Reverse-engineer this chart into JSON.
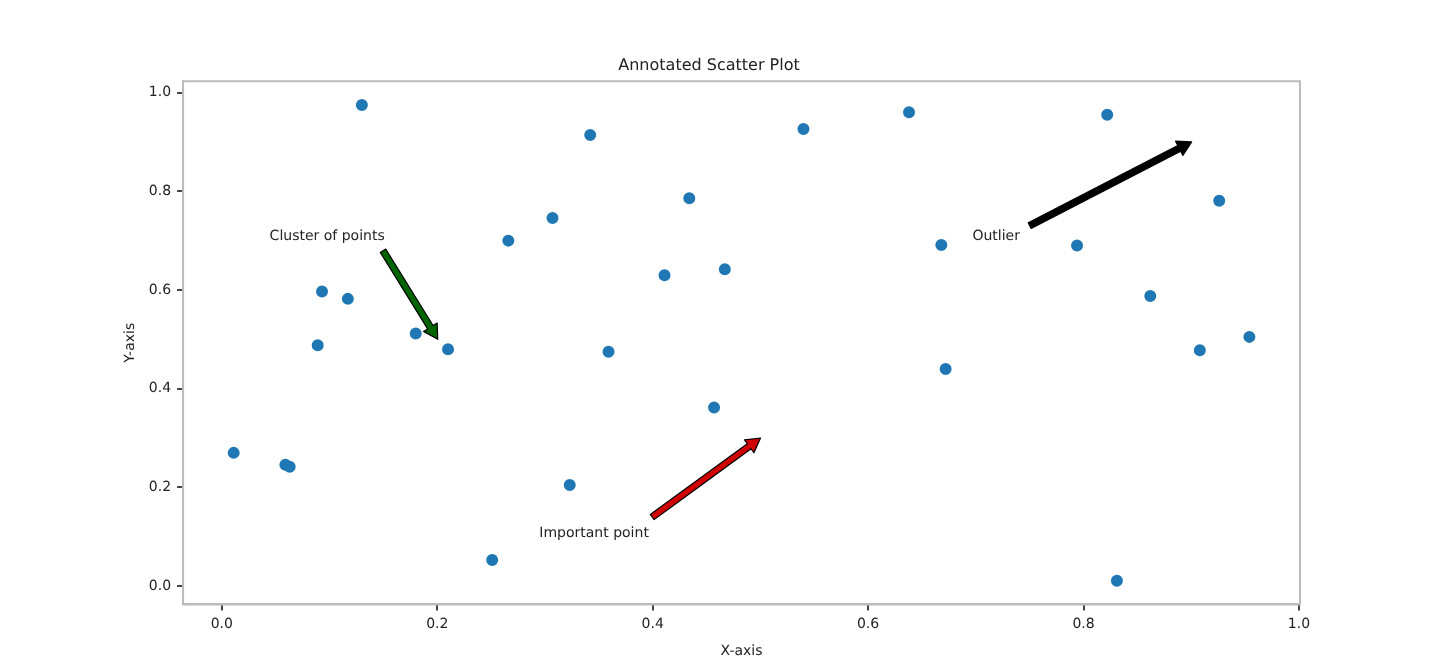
{
  "chart_data": {
    "type": "scatter",
    "title": "Annotated Scatter Plot",
    "xlabel": "X-axis",
    "ylabel": "Y-axis",
    "x": [
      0.011,
      0.059,
      0.063,
      0.093,
      0.089,
      0.117,
      0.13,
      0.18,
      0.21,
      0.251,
      0.266,
      0.307,
      0.323,
      0.342,
      0.359,
      0.411,
      0.434,
      0.457,
      0.467,
      0.54,
      0.638,
      0.668,
      0.672,
      0.794,
      0.822,
      0.831,
      0.862,
      0.908,
      0.926,
      0.954
    ],
    "values": [
      0.27,
      0.246,
      0.242,
      0.597,
      0.488,
      0.582,
      0.975,
      0.512,
      0.48,
      0.053,
      0.7,
      0.746,
      0.205,
      0.914,
      0.475,
      0.63,
      0.786,
      0.362,
      0.642,
      0.926,
      0.96,
      0.691,
      0.44,
      0.69,
      0.955,
      0.011,
      0.588,
      0.478,
      0.781,
      0.505
    ],
    "color": "#1f77b4",
    "marker": "circle",
    "xlim": [
      -0.036,
      1.001
    ],
    "ylim": [
      -0.037,
      1.023
    ],
    "xticks": [
      {
        "value": 0,
        "label": "0.0"
      },
      0.2,
      0.4,
      0.6,
      0.8,
      {
        "value": 1,
        "label": "1.0"
      }
    ],
    "yticks": [
      {
        "value": 0,
        "label": "0.0"
      },
      0.2,
      0.4,
      0.6,
      0.8,
      {
        "value": 1,
        "label": "1.0"
      }
    ],
    "grid": false,
    "annotations": [
      "Cluster of points",
      "Important point",
      "Outlier"
    ]
  }
}
